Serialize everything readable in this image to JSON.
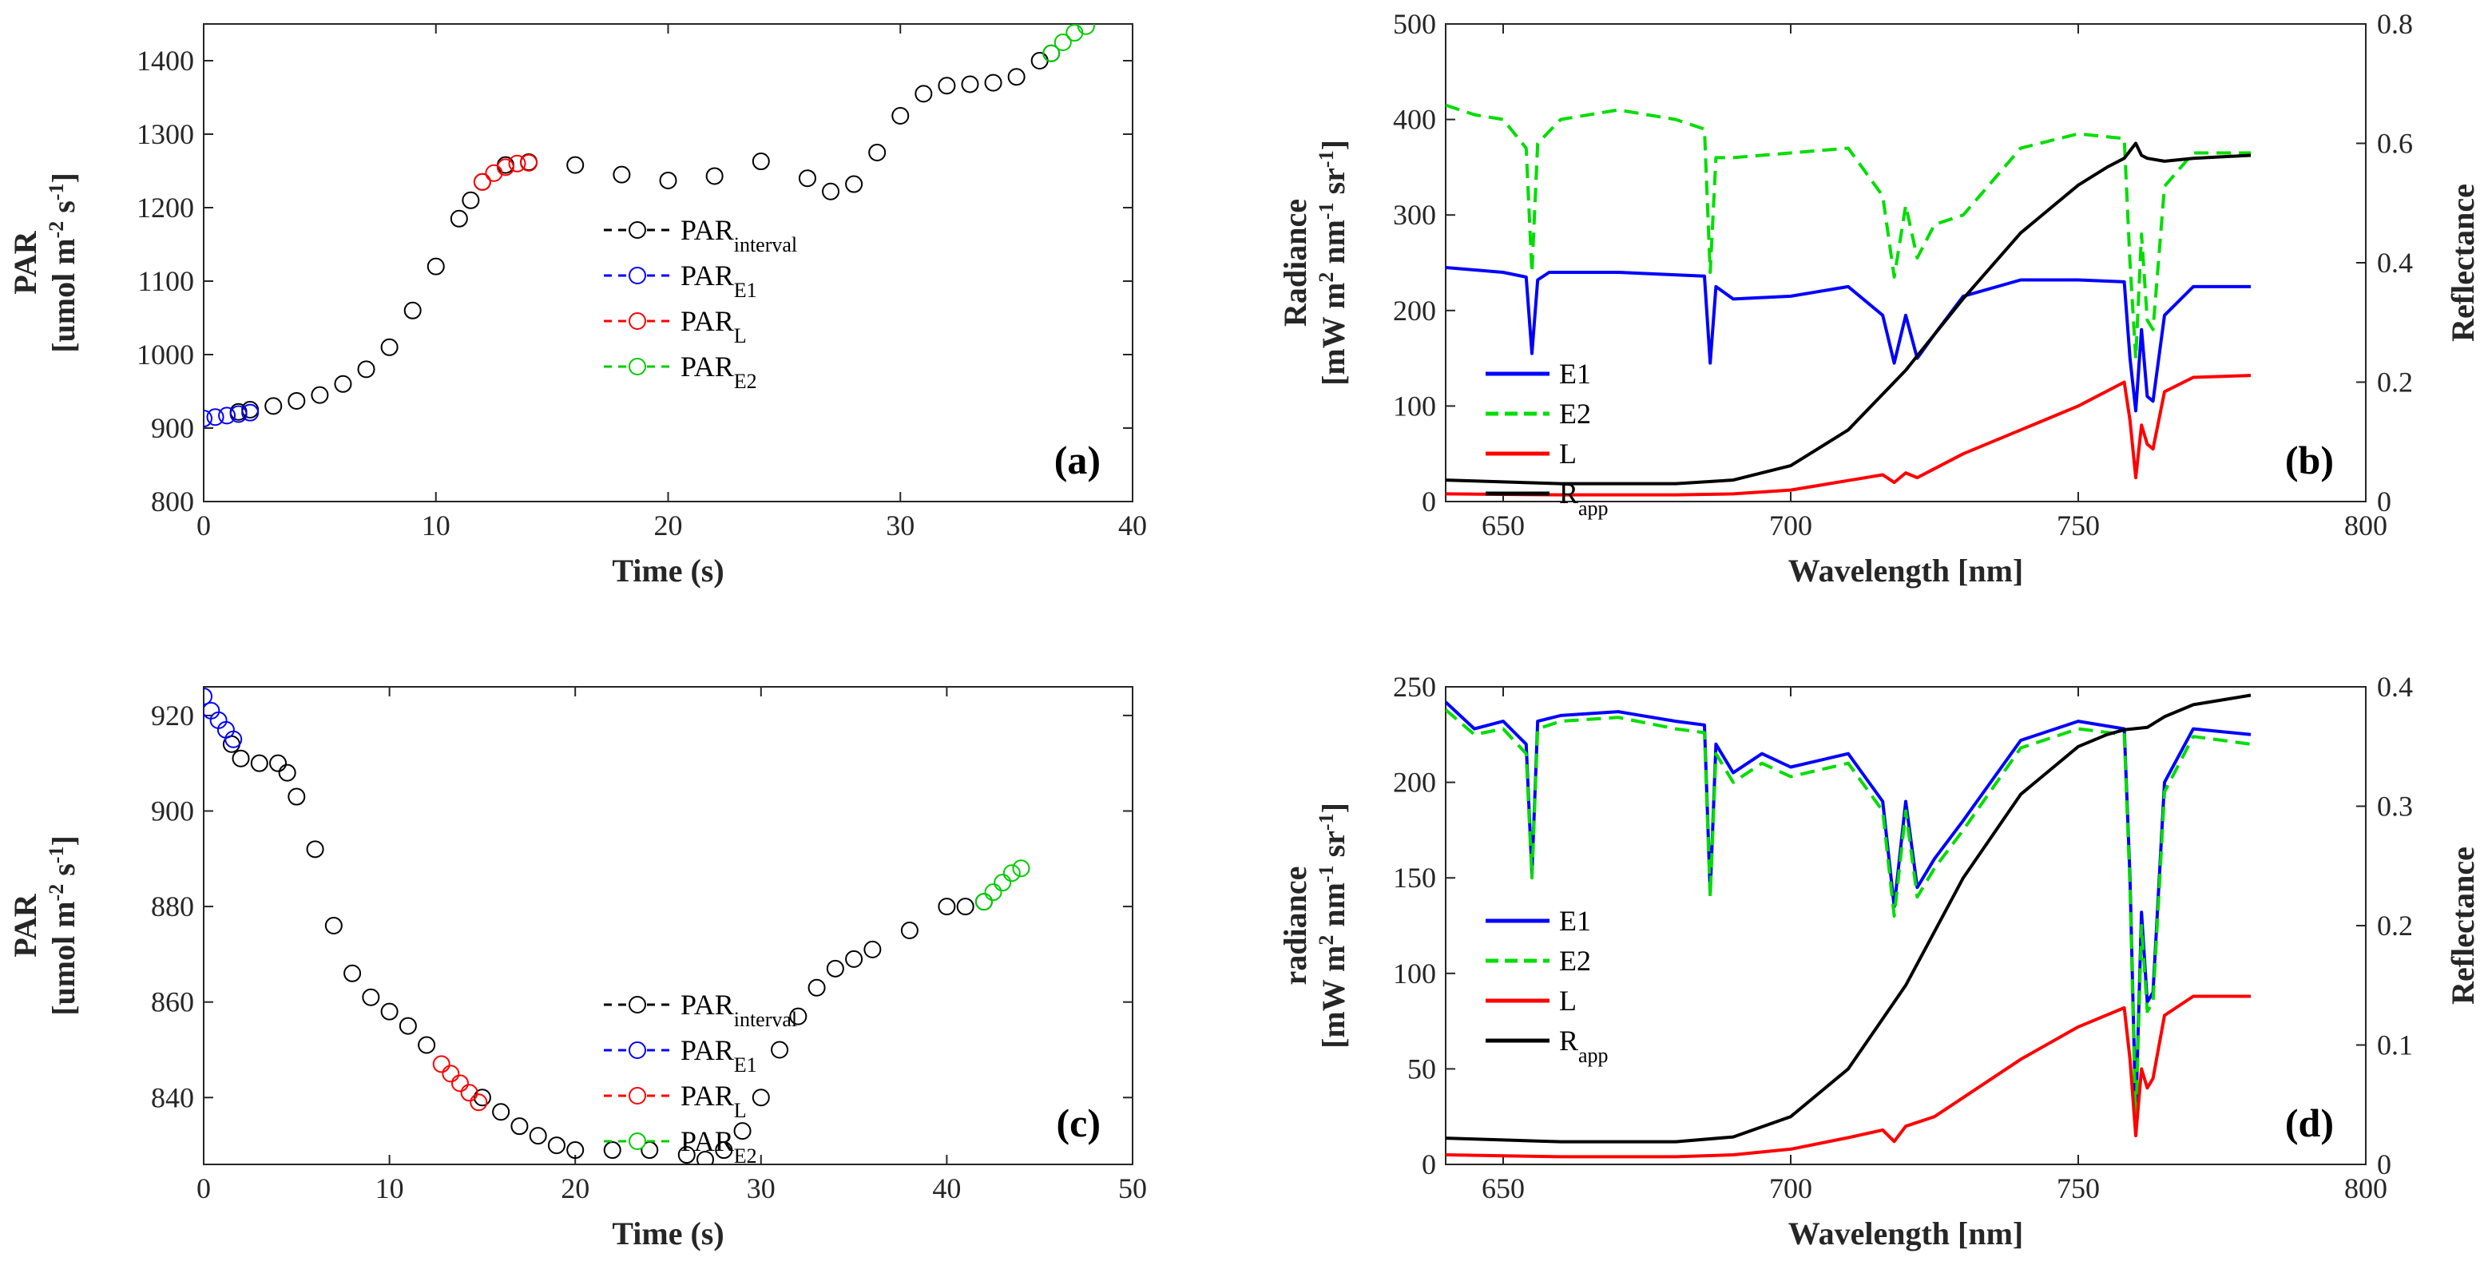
{
  "figure": {
    "panels": [
      "(a)",
      "(b)",
      "(c)",
      "(d)"
    ]
  },
  "chart_data": [
    {
      "id": "a",
      "type": "scatter",
      "panel_label": "(a)",
      "xlabel": "Time (s)",
      "ylabel_line1": "PAR",
      "ylabel_line2": "[umol m-2 s-1]",
      "xlim": [
        0,
        40
      ],
      "ylim": [
        800,
        1450
      ],
      "xticks": [
        0,
        10,
        20,
        30,
        40
      ],
      "yticks": [
        800,
        900,
        1000,
        1100,
        1200,
        1300,
        1400
      ],
      "legend_location": "center",
      "legend_entries": [
        {
          "label": "PAR",
          "sub": "interval",
          "color": "#000000"
        },
        {
          "label": "PAR",
          "sub": "E1",
          "color": "#0000ff"
        },
        {
          "label": "PAR",
          "sub": "L",
          "color": "#ff0000"
        },
        {
          "label": "PAR",
          "sub": "E2",
          "color": "#00cc00"
        }
      ],
      "series": [
        {
          "name": "PARinterval",
          "color": "#000000",
          "x": [
            1.5,
            2,
            3,
            4,
            5,
            6,
            7,
            8,
            9,
            10,
            11,
            11.5,
            12,
            13,
            14,
            16,
            18,
            20,
            22,
            24,
            26,
            27,
            28,
            29,
            30,
            31,
            32,
            33,
            34,
            35,
            36,
            36.5
          ],
          "y": [
            922,
            925,
            930,
            937,
            945,
            960,
            980,
            1010,
            1060,
            1120,
            1185,
            1210,
            1235,
            1258,
            1262,
            1258,
            1245,
            1237,
            1243,
            1263,
            1240,
            1222,
            1232,
            1275,
            1325,
            1355,
            1366,
            1368,
            1370,
            1378,
            1400,
            1410
          ]
        },
        {
          "name": "PARE1",
          "color": "#0000ff",
          "x": [
            0,
            0.5,
            1,
            1.5,
            2
          ],
          "y": [
            913,
            915,
            917,
            919,
            921
          ]
        },
        {
          "name": "PARL",
          "color": "#ff0000",
          "x": [
            12,
            12.5,
            13,
            13.5,
            14
          ],
          "y": [
            1235,
            1247,
            1255,
            1260,
            1261
          ]
        },
        {
          "name": "PARE2",
          "color": "#00cc00",
          "x": [
            36.5,
            37,
            37.5,
            38
          ],
          "y": [
            1410,
            1425,
            1438,
            1447
          ]
        }
      ]
    },
    {
      "id": "b",
      "type": "line",
      "panel_label": "(b)",
      "xlabel": "Wavelength [nm]",
      "ylabel_line1": "Radiance",
      "ylabel_line2": "[mW m2 nm-1 sr-1]",
      "ylabel_right": "Reflectance",
      "xlim": [
        640,
        800
      ],
      "ylim": [
        0,
        500
      ],
      "ylim_right": [
        0,
        0.8
      ],
      "xticks": [
        650,
        700,
        750,
        800
      ],
      "yticks": [
        0,
        100,
        200,
        300,
        400,
        500
      ],
      "yticks_right": [
        0,
        0.2,
        0.4,
        0.6,
        0.8
      ],
      "legend_location": "lower-left",
      "legend_entries": [
        {
          "label": "E1",
          "sub": "",
          "color": "#0000ff",
          "dash": false
        },
        {
          "label": "E2",
          "sub": "",
          "color": "#00dd00",
          "dash": true
        },
        {
          "label": "L",
          "sub": "",
          "color": "#ff0000",
          "dash": false
        },
        {
          "label": "R",
          "sub": "app",
          "color": "#000000",
          "dash": false
        }
      ],
      "series": [
        {
          "name": "E1",
          "color": "#0000ff",
          "dash": false,
          "axis": "left",
          "x": [
            640,
            650,
            654,
            655,
            656,
            658,
            670,
            685,
            686,
            687,
            690,
            700,
            710,
            716,
            718,
            720,
            722,
            725,
            730,
            740,
            750,
            758,
            759,
            760,
            761,
            762,
            763,
            765,
            770,
            780
          ],
          "y": [
            245,
            240,
            235,
            155,
            232,
            240,
            240,
            236,
            145,
            225,
            212,
            215,
            225,
            195,
            145,
            195,
            150,
            175,
            215,
            232,
            232,
            230,
            150,
            95,
            180,
            110,
            105,
            195,
            225,
            225
          ]
        },
        {
          "name": "E2",
          "color": "#00dd00",
          "dash": true,
          "axis": "left",
          "x": [
            640,
            645,
            650,
            654,
            655,
            656,
            660,
            670,
            680,
            685,
            686,
            687,
            690,
            700,
            710,
            716,
            718,
            720,
            722,
            725,
            730,
            740,
            750,
            758,
            759,
            760,
            761,
            762,
            763,
            765,
            770,
            780
          ],
          "y": [
            415,
            405,
            400,
            370,
            240,
            375,
            400,
            410,
            400,
            390,
            240,
            360,
            360,
            365,
            370,
            320,
            235,
            310,
            255,
            290,
            300,
            370,
            385,
            380,
            250,
            150,
            280,
            190,
            180,
            330,
            365,
            365
          ]
        },
        {
          "name": "L",
          "color": "#ff0000",
          "dash": false,
          "axis": "left",
          "x": [
            640,
            660,
            680,
            690,
            700,
            710,
            716,
            718,
            720,
            722,
            730,
            740,
            750,
            758,
            759,
            760,
            761,
            762,
            763,
            765,
            770,
            780
          ],
          "y": [
            8,
            7,
            7,
            8,
            12,
            22,
            28,
            20,
            30,
            25,
            50,
            75,
            100,
            125,
            85,
            25,
            80,
            60,
            55,
            115,
            130,
            132
          ]
        },
        {
          "name": "Rapp",
          "color": "#000000",
          "dash": false,
          "axis": "right",
          "x": [
            640,
            660,
            680,
            690,
            700,
            710,
            720,
            730,
            740,
            750,
            755,
            758,
            760,
            761,
            762,
            765,
            770,
            780
          ],
          "y": [
            0.036,
            0.03,
            0.03,
            0.036,
            0.06,
            0.12,
            0.22,
            0.34,
            0.45,
            0.53,
            0.56,
            0.575,
            0.6,
            0.58,
            0.575,
            0.57,
            0.575,
            0.58
          ]
        }
      ]
    },
    {
      "id": "c",
      "type": "scatter",
      "panel_label": "(c)",
      "xlabel": "Time (s)",
      "ylabel_line1": "PAR",
      "ylabel_line2": "[umol m-2 s-1]",
      "xlim": [
        0,
        50
      ],
      "ylim": [
        826,
        926
      ],
      "xticks": [
        0,
        10,
        20,
        30,
        40,
        50
      ],
      "yticks": [
        840,
        860,
        880,
        900,
        920
      ],
      "legend_location": "top-right",
      "legend_entries": [
        {
          "label": "PAR",
          "sub": "interval",
          "color": "#000000"
        },
        {
          "label": "PAR",
          "sub": "E1",
          "color": "#0000ff"
        },
        {
          "label": "PAR",
          "sub": "L",
          "color": "#ff0000"
        },
        {
          "label": "PAR",
          "sub": "E2",
          "color": "#00cc00"
        }
      ],
      "series": [
        {
          "name": "PARinterval",
          "color": "#000000",
          "x": [
            1.5,
            2,
            3,
            4,
            4.5,
            5,
            6,
            7,
            8,
            9,
            10,
            11,
            12,
            15,
            16,
            17,
            18,
            19,
            20,
            22,
            24,
            26,
            27,
            28,
            29,
            30,
            31,
            32,
            33,
            34,
            35,
            36,
            38,
            40,
            41,
            42
          ],
          "y": [
            914,
            911,
            910,
            910,
            908,
            903,
            892,
            876,
            866,
            861,
            858,
            855,
            851,
            840,
            837,
            834,
            832,
            830,
            829,
            829,
            829,
            828,
            827,
            829,
            833,
            840,
            850,
            857,
            863,
            867,
            869,
            871,
            875,
            880,
            880,
            881
          ]
        },
        {
          "name": "PARE1",
          "color": "#0000ff",
          "x": [
            0,
            0.4,
            0.8,
            1.2,
            1.6
          ],
          "y": [
            924,
            921,
            919,
            917,
            915
          ]
        },
        {
          "name": "PARL",
          "color": "#ff0000",
          "x": [
            12.8,
            13.3,
            13.8,
            14.3,
            14.8
          ],
          "y": [
            847,
            845,
            843,
            841,
            839
          ]
        },
        {
          "name": "PARE2",
          "color": "#00cc00",
          "x": [
            42,
            42.5,
            43,
            43.5,
            44
          ],
          "y": [
            881,
            883,
            885,
            887,
            888
          ]
        }
      ]
    },
    {
      "id": "d",
      "type": "line",
      "panel_label": "(d)",
      "xlabel": "Wavelength [nm]",
      "ylabel_line1": "radiance",
      "ylabel_line2": "[mW m2 nm-1 sr-1]",
      "ylabel_right": "Reflectance",
      "xlim": [
        640,
        800
      ],
      "ylim": [
        0,
        250
      ],
      "ylim_right": [
        0,
        0.4
      ],
      "xticks": [
        650,
        700,
        750,
        800
      ],
      "yticks": [
        0,
        50,
        100,
        150,
        200,
        250
      ],
      "yticks_right": [
        0,
        0.1,
        0.2,
        0.3,
        0.4
      ],
      "legend_location": "center-left",
      "legend_entries": [
        {
          "label": "E1",
          "sub": "",
          "color": "#0000ff",
          "dash": false
        },
        {
          "label": "E2",
          "sub": "",
          "color": "#00dd00",
          "dash": true
        },
        {
          "label": "L",
          "sub": "",
          "color": "#ff0000",
          "dash": false
        },
        {
          "label": "R",
          "sub": "app",
          "color": "#000000",
          "dash": false
        }
      ],
      "series": [
        {
          "name": "E1",
          "color": "#0000ff",
          "dash": false,
          "axis": "left",
          "x": [
            640,
            645,
            650,
            654,
            655,
            656,
            660,
            670,
            680,
            685,
            686,
            687,
            690,
            695,
            700,
            710,
            716,
            718,
            720,
            722,
            725,
            730,
            740,
            750,
            758,
            759,
            760,
            761,
            762,
            763,
            765,
            770,
            780
          ],
          "y": [
            242,
            228,
            232,
            220,
            152,
            232,
            235,
            237,
            232,
            230,
            142,
            220,
            205,
            215,
            208,
            215,
            190,
            135,
            190,
            145,
            160,
            180,
            222,
            232,
            228,
            150,
            25,
            132,
            85,
            90,
            200,
            228,
            225
          ]
        },
        {
          "name": "E2",
          "color": "#00dd00",
          "dash": true,
          "axis": "left",
          "x": [
            640,
            645,
            650,
            654,
            655,
            656,
            660,
            670,
            680,
            685,
            686,
            687,
            690,
            695,
            700,
            710,
            716,
            718,
            720,
            722,
            725,
            730,
            740,
            750,
            758,
            759,
            760,
            761,
            762,
            763,
            765,
            770,
            780
          ],
          "y": [
            238,
            225,
            228,
            215,
            150,
            228,
            232,
            234,
            228,
            226,
            140,
            215,
            200,
            210,
            203,
            210,
            185,
            130,
            185,
            140,
            155,
            175,
            218,
            228,
            225,
            145,
            20,
            125,
            80,
            85,
            195,
            224,
            220
          ]
        },
        {
          "name": "L",
          "color": "#ff0000",
          "dash": false,
          "axis": "left",
          "x": [
            640,
            660,
            680,
            690,
            700,
            710,
            716,
            718,
            720,
            725,
            730,
            740,
            750,
            758,
            759,
            760,
            761,
            762,
            763,
            765,
            770,
            780
          ],
          "y": [
            5,
            4,
            4,
            5,
            8,
            14,
            18,
            12,
            20,
            25,
            35,
            55,
            72,
            82,
            55,
            15,
            50,
            40,
            45,
            78,
            88,
            88
          ]
        },
        {
          "name": "Rapp",
          "color": "#000000",
          "dash": false,
          "axis": "right",
          "x": [
            640,
            660,
            680,
            690,
            700,
            710,
            720,
            730,
            740,
            750,
            755,
            758,
            760,
            762,
            765,
            770,
            780
          ],
          "y": [
            0.022,
            0.019,
            0.019,
            0.023,
            0.04,
            0.08,
            0.15,
            0.24,
            0.31,
            0.35,
            0.36,
            0.364,
            0.365,
            0.366,
            0.375,
            0.385,
            0.393
          ]
        }
      ]
    }
  ]
}
